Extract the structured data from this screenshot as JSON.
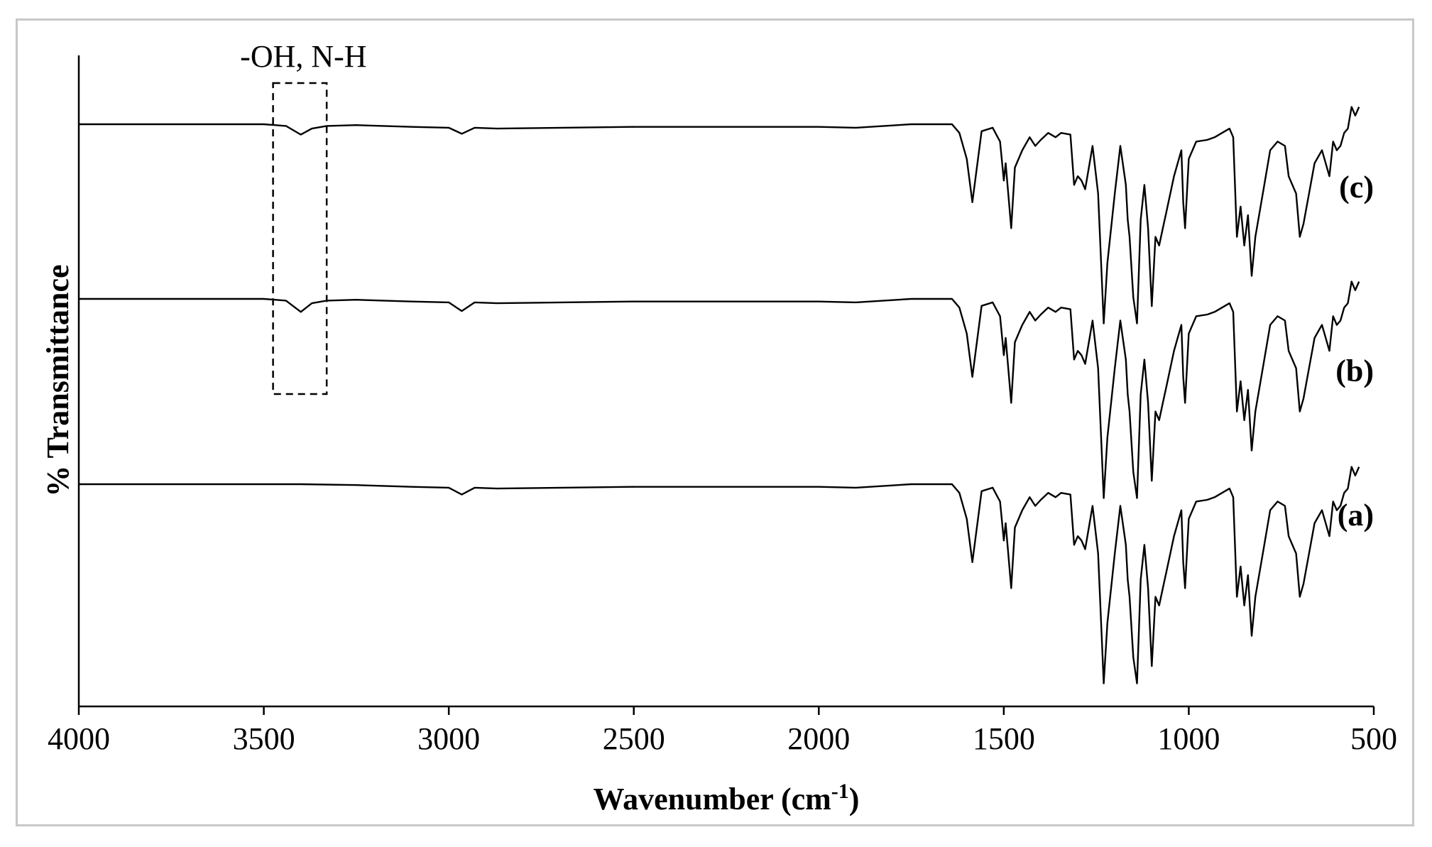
{
  "chart_data": {
    "type": "line",
    "title": "",
    "xlabel": "Wavenumber (cm",
    "xlabel_superscript": "-1",
    "xlabel_suffix": ")",
    "ylabel": "% Transmittance",
    "xlim": [
      4000,
      500
    ],
    "x_reversed": true,
    "xticks": [
      4000,
      3500,
      3000,
      2500,
      2000,
      1500,
      1000,
      500
    ],
    "xtick_labels": [
      "4000",
      "3500",
      "3000",
      "2500",
      "2000",
      "1500",
      "1000",
      "500"
    ],
    "y_ticks_shown": false,
    "grid": false,
    "annotations": [
      {
        "text": "-OH, N-H",
        "x_range": [
          3475,
          3330
        ],
        "style": "dashed-box"
      }
    ],
    "series": [
      {
        "name": "(a)",
        "label": "(a)",
        "has_oh_nh_band": false,
        "points": [
          [
            4000,
            0
          ],
          [
            3700,
            0
          ],
          [
            3500,
            0
          ],
          [
            3400,
            0
          ],
          [
            3250,
            -1
          ],
          [
            3100,
            -3
          ],
          [
            3000,
            -4
          ],
          [
            2965,
            -12
          ],
          [
            2930,
            -4
          ],
          [
            2870,
            -5
          ],
          [
            2500,
            -3
          ],
          [
            2000,
            -3
          ],
          [
            1900,
            -4
          ],
          [
            1750,
            0
          ],
          [
            1640,
            0
          ],
          [
            1620,
            -10
          ],
          [
            1600,
            -40
          ],
          [
            1585,
            -90
          ],
          [
            1560,
            -8
          ],
          [
            1530,
            -4
          ],
          [
            1510,
            -20
          ],
          [
            1500,
            -65
          ],
          [
            1495,
            -45
          ],
          [
            1480,
            -120
          ],
          [
            1470,
            -50
          ],
          [
            1450,
            -30
          ],
          [
            1430,
            -15
          ],
          [
            1415,
            -25
          ],
          [
            1400,
            -18
          ],
          [
            1380,
            -10
          ],
          [
            1360,
            -15
          ],
          [
            1345,
            -10
          ],
          [
            1320,
            -12
          ],
          [
            1310,
            -70
          ],
          [
            1300,
            -60
          ],
          [
            1290,
            -65
          ],
          [
            1280,
            -75
          ],
          [
            1260,
            -25
          ],
          [
            1245,
            -80
          ],
          [
            1235,
            -180
          ],
          [
            1230,
            -230
          ],
          [
            1220,
            -160
          ],
          [
            1200,
            -80
          ],
          [
            1185,
            -25
          ],
          [
            1170,
            -70
          ],
          [
            1165,
            -110
          ],
          [
            1160,
            -130
          ],
          [
            1150,
            -200
          ],
          [
            1140,
            -230
          ],
          [
            1130,
            -110
          ],
          [
            1120,
            -70
          ],
          [
            1110,
            -120
          ],
          [
            1100,
            -210
          ],
          [
            1090,
            -130
          ],
          [
            1080,
            -140
          ],
          [
            1070,
            -120
          ],
          [
            1060,
            -100
          ],
          [
            1040,
            -60
          ],
          [
            1020,
            -30
          ],
          [
            1015,
            -90
          ],
          [
            1010,
            -120
          ],
          [
            1000,
            -40
          ],
          [
            980,
            -20
          ],
          [
            950,
            -18
          ],
          [
            930,
            -15
          ],
          [
            910,
            -10
          ],
          [
            890,
            -5
          ],
          [
            880,
            -15
          ],
          [
            870,
            -130
          ],
          [
            860,
            -95
          ],
          [
            850,
            -140
          ],
          [
            840,
            -105
          ],
          [
            830,
            -175
          ],
          [
            820,
            -130
          ],
          [
            800,
            -80
          ],
          [
            780,
            -30
          ],
          [
            760,
            -20
          ],
          [
            740,
            -25
          ],
          [
            730,
            -60
          ],
          [
            720,
            -70
          ],
          [
            710,
            -80
          ],
          [
            700,
            -130
          ],
          [
            690,
            -115
          ],
          [
            660,
            -45
          ],
          [
            640,
            -30
          ],
          [
            620,
            -60
          ],
          [
            610,
            -20
          ],
          [
            600,
            -30
          ],
          [
            590,
            -25
          ],
          [
            580,
            -10
          ],
          [
            570,
            -5
          ],
          [
            560,
            20
          ],
          [
            550,
            10
          ],
          [
            540,
            20
          ]
        ]
      },
      {
        "name": "(b)",
        "label": "(b)",
        "has_oh_nh_band": true,
        "points": [
          [
            4000,
            0
          ],
          [
            3700,
            0
          ],
          [
            3500,
            0
          ],
          [
            3440,
            -2
          ],
          [
            3400,
            -15
          ],
          [
            3370,
            -5
          ],
          [
            3330,
            -2
          ],
          [
            3250,
            -1
          ],
          [
            3100,
            -3
          ],
          [
            3000,
            -4
          ],
          [
            2965,
            -14
          ],
          [
            2930,
            -4
          ],
          [
            2870,
            -5
          ],
          [
            2500,
            -3
          ],
          [
            2000,
            -3
          ],
          [
            1900,
            -4
          ],
          [
            1750,
            0
          ],
          [
            1640,
            0
          ],
          [
            1620,
            -10
          ],
          [
            1600,
            -40
          ],
          [
            1585,
            -90
          ],
          [
            1560,
            -8
          ],
          [
            1530,
            -4
          ],
          [
            1510,
            -20
          ],
          [
            1500,
            -65
          ],
          [
            1495,
            -45
          ],
          [
            1480,
            -120
          ],
          [
            1470,
            -50
          ],
          [
            1450,
            -30
          ],
          [
            1430,
            -15
          ],
          [
            1415,
            -25
          ],
          [
            1400,
            -18
          ],
          [
            1380,
            -10
          ],
          [
            1360,
            -15
          ],
          [
            1345,
            -10
          ],
          [
            1320,
            -12
          ],
          [
            1310,
            -70
          ],
          [
            1300,
            -60
          ],
          [
            1290,
            -65
          ],
          [
            1280,
            -75
          ],
          [
            1260,
            -25
          ],
          [
            1245,
            -80
          ],
          [
            1235,
            -180
          ],
          [
            1230,
            -230
          ],
          [
            1220,
            -160
          ],
          [
            1200,
            -80
          ],
          [
            1185,
            -25
          ],
          [
            1170,
            -70
          ],
          [
            1165,
            -110
          ],
          [
            1160,
            -130
          ],
          [
            1150,
            -200
          ],
          [
            1140,
            -230
          ],
          [
            1130,
            -110
          ],
          [
            1120,
            -70
          ],
          [
            1110,
            -120
          ],
          [
            1100,
            -210
          ],
          [
            1090,
            -130
          ],
          [
            1080,
            -140
          ],
          [
            1070,
            -120
          ],
          [
            1060,
            -100
          ],
          [
            1040,
            -60
          ],
          [
            1020,
            -30
          ],
          [
            1015,
            -90
          ],
          [
            1010,
            -120
          ],
          [
            1000,
            -40
          ],
          [
            980,
            -20
          ],
          [
            950,
            -18
          ],
          [
            930,
            -15
          ],
          [
            910,
            -10
          ],
          [
            890,
            -5
          ],
          [
            880,
            -15
          ],
          [
            870,
            -130
          ],
          [
            860,
            -95
          ],
          [
            850,
            -140
          ],
          [
            840,
            -105
          ],
          [
            830,
            -175
          ],
          [
            820,
            -130
          ],
          [
            800,
            -80
          ],
          [
            780,
            -30
          ],
          [
            760,
            -20
          ],
          [
            740,
            -25
          ],
          [
            730,
            -60
          ],
          [
            720,
            -70
          ],
          [
            710,
            -80
          ],
          [
            700,
            -130
          ],
          [
            690,
            -115
          ],
          [
            660,
            -45
          ],
          [
            640,
            -30
          ],
          [
            620,
            -60
          ],
          [
            610,
            -20
          ],
          [
            600,
            -30
          ],
          [
            590,
            -25
          ],
          [
            580,
            -10
          ],
          [
            570,
            -5
          ],
          [
            560,
            20
          ],
          [
            550,
            10
          ],
          [
            540,
            20
          ]
        ]
      },
      {
        "name": "(c)",
        "label": "(c)",
        "has_oh_nh_band": true,
        "points": [
          [
            4000,
            0
          ],
          [
            3700,
            0
          ],
          [
            3500,
            0
          ],
          [
            3440,
            -2
          ],
          [
            3400,
            -12
          ],
          [
            3370,
            -5
          ],
          [
            3330,
            -2
          ],
          [
            3250,
            -1
          ],
          [
            3100,
            -3
          ],
          [
            3000,
            -4
          ],
          [
            2965,
            -11
          ],
          [
            2930,
            -4
          ],
          [
            2870,
            -5
          ],
          [
            2500,
            -3
          ],
          [
            2000,
            -3
          ],
          [
            1900,
            -4
          ],
          [
            1750,
            0
          ],
          [
            1640,
            0
          ],
          [
            1620,
            -10
          ],
          [
            1600,
            -40
          ],
          [
            1585,
            -90
          ],
          [
            1560,
            -8
          ],
          [
            1530,
            -4
          ],
          [
            1510,
            -20
          ],
          [
            1500,
            -65
          ],
          [
            1495,
            -45
          ],
          [
            1480,
            -120
          ],
          [
            1470,
            -50
          ],
          [
            1450,
            -30
          ],
          [
            1430,
            -15
          ],
          [
            1415,
            -25
          ],
          [
            1400,
            -18
          ],
          [
            1380,
            -10
          ],
          [
            1360,
            -15
          ],
          [
            1345,
            -10
          ],
          [
            1320,
            -12
          ],
          [
            1310,
            -70
          ],
          [
            1300,
            -60
          ],
          [
            1290,
            -65
          ],
          [
            1280,
            -75
          ],
          [
            1260,
            -25
          ],
          [
            1245,
            -80
          ],
          [
            1235,
            -180
          ],
          [
            1230,
            -230
          ],
          [
            1220,
            -160
          ],
          [
            1200,
            -80
          ],
          [
            1185,
            -25
          ],
          [
            1170,
            -70
          ],
          [
            1165,
            -110
          ],
          [
            1160,
            -130
          ],
          [
            1150,
            -200
          ],
          [
            1140,
            -230
          ],
          [
            1130,
            -110
          ],
          [
            1120,
            -70
          ],
          [
            1110,
            -120
          ],
          [
            1100,
            -210
          ],
          [
            1090,
            -130
          ],
          [
            1080,
            -140
          ],
          [
            1070,
            -120
          ],
          [
            1060,
            -100
          ],
          [
            1040,
            -60
          ],
          [
            1020,
            -30
          ],
          [
            1015,
            -90
          ],
          [
            1010,
            -120
          ],
          [
            1000,
            -40
          ],
          [
            980,
            -20
          ],
          [
            950,
            -18
          ],
          [
            930,
            -15
          ],
          [
            910,
            -10
          ],
          [
            890,
            -5
          ],
          [
            880,
            -15
          ],
          [
            870,
            -130
          ],
          [
            860,
            -95
          ],
          [
            850,
            -140
          ],
          [
            840,
            -105
          ],
          [
            830,
            -175
          ],
          [
            820,
            -130
          ],
          [
            800,
            -80
          ],
          [
            780,
            -30
          ],
          [
            760,
            -20
          ],
          [
            740,
            -25
          ],
          [
            730,
            -60
          ],
          [
            720,
            -70
          ],
          [
            710,
            -80
          ],
          [
            700,
            -130
          ],
          [
            690,
            -115
          ],
          [
            660,
            -45
          ],
          [
            640,
            -30
          ],
          [
            620,
            -60
          ],
          [
            610,
            -20
          ],
          [
            600,
            -30
          ],
          [
            590,
            -25
          ],
          [
            580,
            -10
          ],
          [
            570,
            -5
          ],
          [
            560,
            20
          ],
          [
            550,
            10
          ],
          [
            540,
            20
          ]
        ]
      }
    ]
  },
  "colors": {
    "line": "#000000",
    "frame": "#c8c8c8"
  }
}
